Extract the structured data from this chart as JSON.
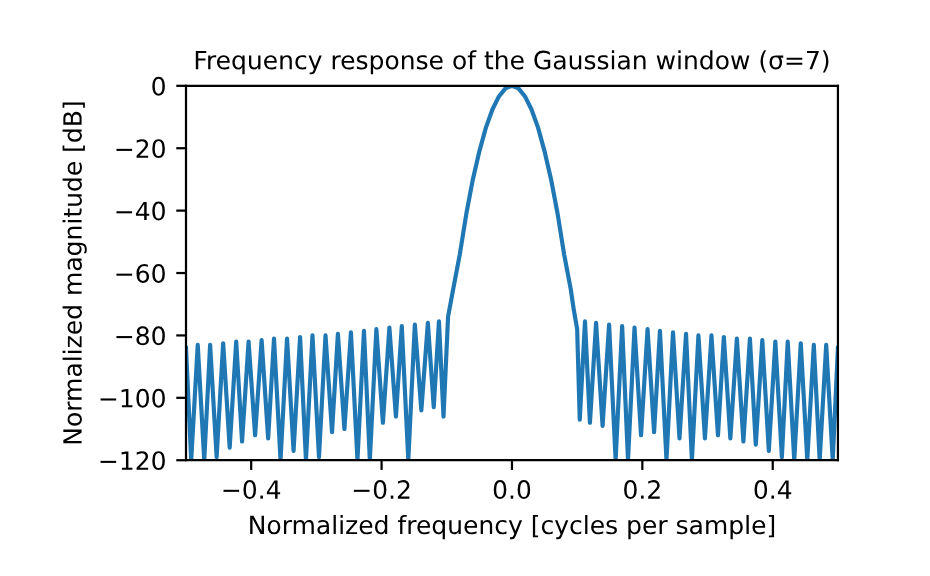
{
  "chart_data": {
    "type": "line",
    "title": "Frequency response of the Gaussian window (σ=7)",
    "xlabel": "Normalized frequency [cycles per sample]",
    "ylabel": "Normalized magnitude [dB]",
    "xlim": [
      -0.5,
      0.5
    ],
    "ylim": [
      -120,
      0
    ],
    "xticks": [
      {
        "value": -0.4,
        "label": "−0.4"
      },
      {
        "value": -0.2,
        "label": "−0.2"
      },
      {
        "value": 0,
        "label": "0.0"
      },
      {
        "value": 0.2,
        "label": "0.2"
      },
      {
        "value": 0.4,
        "label": "0.4"
      }
    ],
    "yticks": [
      {
        "value": -120,
        "label": "−120"
      },
      {
        "value": -100,
        "label": "−100"
      },
      {
        "value": -80,
        "label": "−80"
      },
      {
        "value": -60,
        "label": "−60"
      },
      {
        "value": -40,
        "label": "−40"
      },
      {
        "value": -20,
        "label": "−20"
      },
      0
    ],
    "grid": false,
    "legend": false,
    "series": [
      {
        "color": "#1f77b4",
        "x": [
          -0.5,
          -0.492,
          -0.482,
          -0.472,
          -0.463,
          -0.453,
          -0.443,
          -0.433,
          -0.423,
          -0.414,
          -0.404,
          -0.394,
          -0.384,
          -0.374,
          -0.365,
          -0.355,
          -0.345,
          -0.335,
          -0.325,
          -0.316,
          -0.306,
          -0.296,
          -0.286,
          -0.276,
          -0.267,
          -0.257,
          -0.247,
          -0.237,
          -0.227,
          -0.218,
          -0.208,
          -0.198,
          -0.188,
          -0.178,
          -0.169,
          -0.159,
          -0.149,
          -0.139,
          -0.129,
          -0.12,
          -0.112,
          -0.105,
          -0.098,
          -0.09,
          -0.08,
          -0.07,
          -0.06,
          -0.05,
          -0.04,
          -0.03,
          -0.02,
          -0.01,
          0.0,
          0.01,
          0.02,
          0.03,
          0.04,
          0.05,
          0.06,
          0.07,
          0.08,
          0.09,
          0.095,
          0.1,
          0.104,
          0.112,
          0.1196,
          0.129,
          0.139,
          0.149,
          0.159,
          0.169,
          0.178,
          0.188,
          0.198,
          0.208,
          0.218,
          0.227,
          0.237,
          0.247,
          0.257,
          0.267,
          0.276,
          0.286,
          0.296,
          0.306,
          0.316,
          0.325,
          0.335,
          0.345,
          0.355,
          0.365,
          0.374,
          0.384,
          0.394,
          0.404,
          0.414,
          0.423,
          0.433,
          0.443,
          0.453,
          0.463,
          0.472,
          0.482,
          0.492,
          0.5
        ],
        "values": [
          -84,
          -120,
          -83,
          -120,
          -83,
          -119,
          -82.5,
          -116,
          -82,
          -114,
          -82,
          -112,
          -81.5,
          -113,
          -81,
          -120,
          -81,
          -117,
          -80.5,
          -120,
          -80,
          -119,
          -80,
          -111,
          -79.5,
          -110,
          -79,
          -120,
          -78.5,
          -120,
          -78,
          -108,
          -77.5,
          -106,
          -77,
          -120,
          -76.5,
          -104,
          -76,
          -103,
          -75.5,
          -106,
          -74,
          -65,
          -54,
          -41,
          -30,
          -21,
          -13.4,
          -7.6,
          -3.4,
          -0.8,
          0,
          -0.8,
          -3.4,
          -7.6,
          -13.4,
          -21,
          -30,
          -41,
          -54,
          -65,
          -72,
          -78,
          -107,
          -75.5,
          -108,
          -76,
          -109,
          -76.5,
          -120,
          -77,
          -120,
          -77.5,
          -112,
          -78,
          -111,
          -78.5,
          -120,
          -79,
          -113,
          -79.5,
          -120,
          -80,
          -113,
          -80,
          -112,
          -80.5,
          -113,
          -81,
          -114,
          -81,
          -115,
          -81.5,
          -117,
          -82,
          -119,
          -82,
          -120,
          -82.5,
          -120,
          -83,
          -120,
          -83,
          -120,
          -84
        ]
      }
    ]
  }
}
